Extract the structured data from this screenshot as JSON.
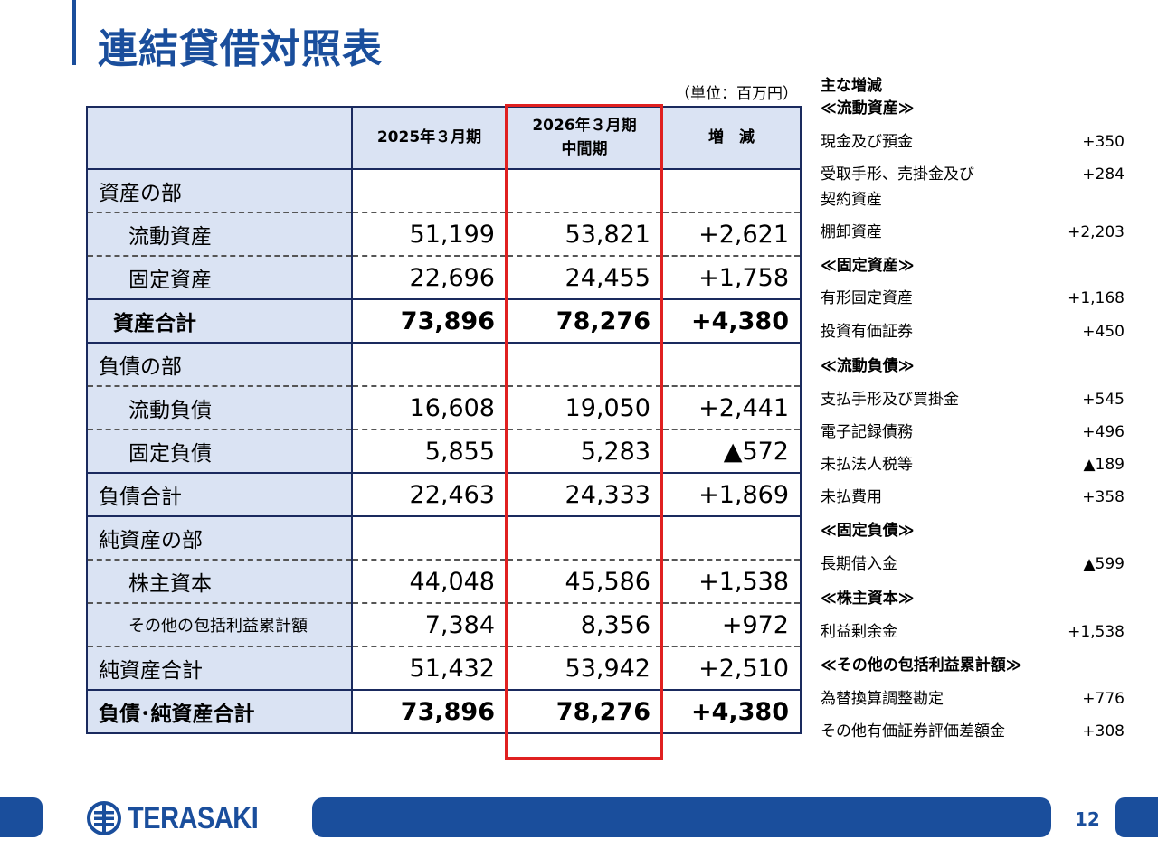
{
  "title": "連結貸借対照表",
  "unit": "（単位：百万円）",
  "table": {
    "headers": [
      "",
      "2025年３月期",
      "2026年３月期\n中間期",
      "増　減"
    ],
    "rows": [
      {
        "label": "資産の部",
        "v1": "",
        "v2": "",
        "d": ""
      },
      {
        "label": "流動資産",
        "v1": "51,199",
        "v2": "53,821",
        "d": "+2,621"
      },
      {
        "label": "固定資産",
        "v1": "22,696",
        "v2": "24,455",
        "d": "+1,758"
      },
      {
        "label": "資産合計",
        "v1": "73,896",
        "v2": "78,276",
        "d": "+4,380"
      },
      {
        "label": "負債の部",
        "v1": "",
        "v2": "",
        "d": ""
      },
      {
        "label": "流動負債",
        "v1": "16,608",
        "v2": "19,050",
        "d": "+2,441"
      },
      {
        "label": "固定負債",
        "v1": "5,855",
        "v2": "5,283",
        "d": "▲572"
      },
      {
        "label": "負債合計",
        "v1": "22,463",
        "v2": "24,333",
        "d": "+1,869"
      },
      {
        "label": "純資産の部",
        "v1": "",
        "v2": "",
        "d": ""
      },
      {
        "label": "株主資本",
        "v1": "44,048",
        "v2": "45,586",
        "d": "+1,538"
      },
      {
        "label": "その他の包括利益累計額",
        "v1": "7,384",
        "v2": "8,356",
        "d": "+972"
      },
      {
        "label": "純資産合計",
        "v1": "51,432",
        "v2": "53,942",
        "d": "+2,510"
      },
      {
        "label": "負債･純資産合計",
        "v1": "73,896",
        "v2": "78,276",
        "d": "+4,380"
      }
    ]
  },
  "notes": {
    "title": "主な増減",
    "items": [
      {
        "label": "≪流動資産≫",
        "value": ""
      },
      {
        "label": "現金及び預金",
        "value": "+350"
      },
      {
        "label": "受取手形、売掛金及び",
        "value": "+284"
      },
      {
        "label": "契約資産",
        "value": ""
      },
      {
        "label": "棚卸資産",
        "value": "+2,203"
      },
      {
        "label": "≪固定資産≫",
        "value": ""
      },
      {
        "label": "有形固定資産",
        "value": "+1,168"
      },
      {
        "label": "投資有価証券",
        "value": "+450"
      },
      {
        "label": "≪流動負債≫",
        "value": ""
      },
      {
        "label": "支払手形及び買掛金",
        "value": "+545"
      },
      {
        "label": "電子記録債務",
        "value": "+496"
      },
      {
        "label": "未払法人税等",
        "value": "▲189"
      },
      {
        "label": "未払費用",
        "value": "+358"
      },
      {
        "label": "≪固定負債≫",
        "value": ""
      },
      {
        "label": "長期借入金",
        "value": "▲599"
      },
      {
        "label": "≪株主資本≫",
        "value": ""
      },
      {
        "label": "利益剰余金",
        "value": "+1,538"
      },
      {
        "label": "≪その他の包括利益累計額≫",
        "value": ""
      },
      {
        "label": "為替換算調整勘定",
        "value": "+776"
      },
      {
        "label": "その他有価証券評価差額金",
        "value": "+308"
      }
    ]
  },
  "footer": {
    "company": "TERASAKI",
    "page": "12"
  },
  "colors": {
    "brand_blue": "#1a4e9c",
    "header_fill": "#dae3f3",
    "highlight_red": "#e02020"
  }
}
